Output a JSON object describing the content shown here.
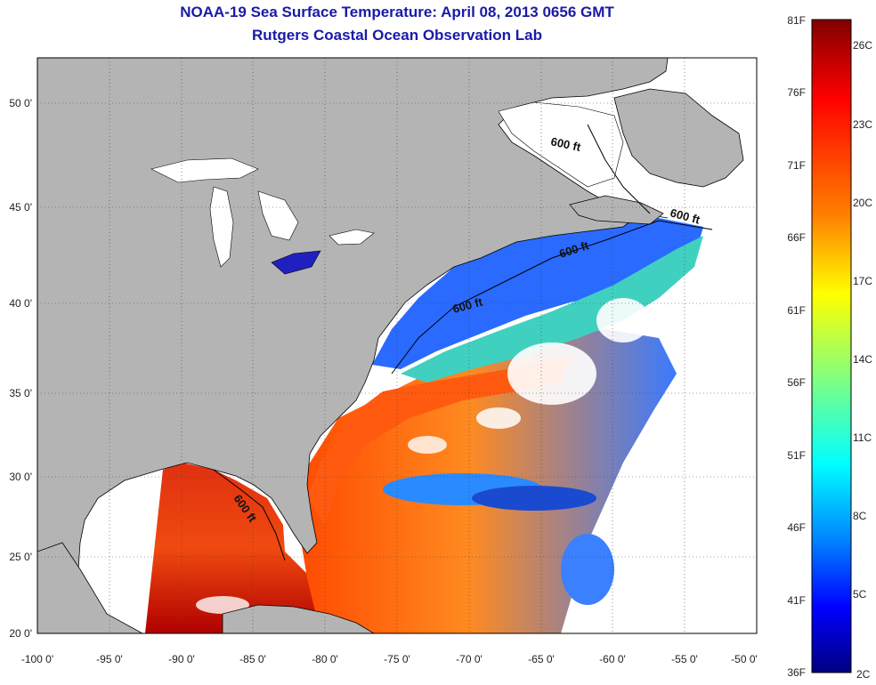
{
  "title": "NOAA-19 Sea Surface Temperature:  April 08, 2013 0656 GMT",
  "subtitle": "Rutgers Coastal Ocean Observation Lab",
  "map": {
    "lon_labels": [
      "-100 0'",
      "-95 0'",
      "-90 0'",
      "-85 0'",
      "-80 0'",
      "-75 0'",
      "-70 0'",
      "-65 0'",
      "-60 0'",
      "-55 0'",
      "-50 0'"
    ],
    "lat_labels": [
      "50 0'",
      "45 0'",
      "40 0'",
      "35 0'",
      "30 0'",
      "25 0'",
      "20 0'"
    ],
    "contour_labels": [
      "600 ft",
      "600 ft",
      "600 ft",
      "600 ft",
      "600 ft"
    ],
    "land_color": "#b4b4b4",
    "no_data_color": "#ffffff"
  },
  "colorbar": {
    "fahrenheit_labels": [
      "81F",
      "76F",
      "71F",
      "66F",
      "61F",
      "56F",
      "51F",
      "46F",
      "41F",
      "36F"
    ],
    "celsius_labels": [
      "26C",
      "23C",
      "20C",
      "17C",
      "14C",
      "11C",
      "8C",
      "5C",
      "2C"
    ],
    "colors": [
      "#800000",
      "#ff0000",
      "#ff8000",
      "#ffff00",
      "#80ff80",
      "#00ffff",
      "#0080ff",
      "#0000ff",
      "#000080"
    ]
  }
}
